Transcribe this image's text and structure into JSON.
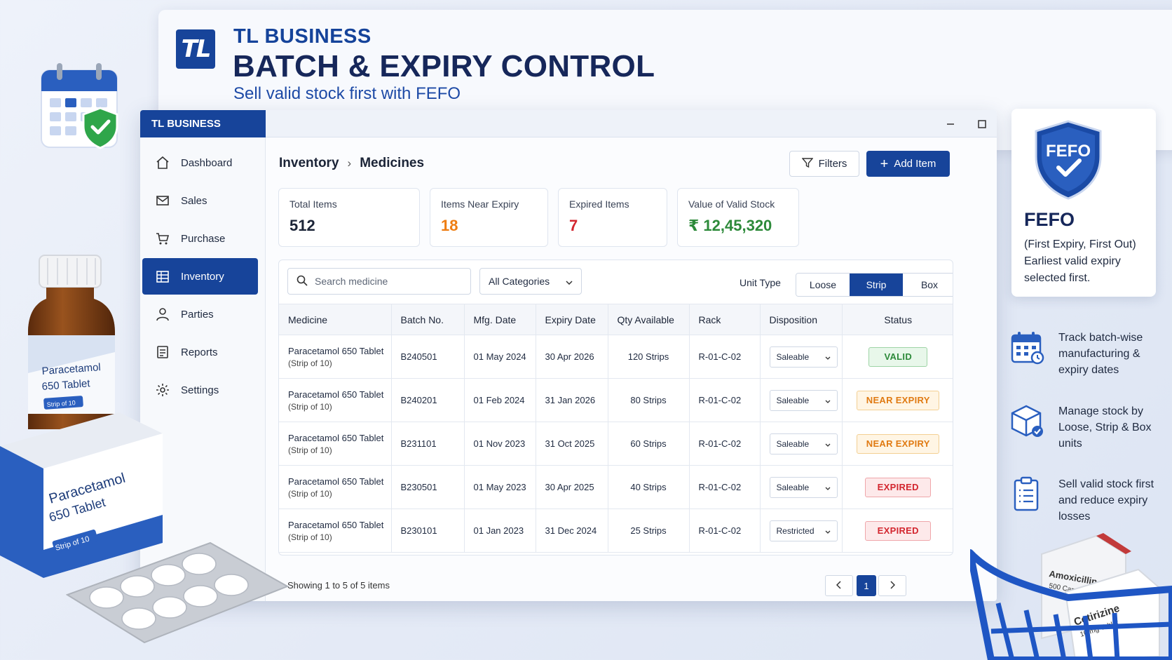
{
  "brand": {
    "logo": "TL",
    "name": "TL BUSINESS",
    "title": "BATCH & EXPIRY CONTROL",
    "tagline": "Sell valid stock first with FEFO"
  },
  "window": {
    "app_name": "TL BUSINESS",
    "controls": [
      "minimize-icon",
      "maximize-icon",
      "close-icon"
    ]
  },
  "sidebar": {
    "items": [
      {
        "label": "Dashboard",
        "icon": "home-icon"
      },
      {
        "label": "Sales",
        "icon": "sales-icon"
      },
      {
        "label": "Purchase",
        "icon": "cart-icon"
      },
      {
        "label": "Inventory",
        "icon": "inventory-icon",
        "active": true
      },
      {
        "label": "Parties",
        "icon": "user-icon"
      },
      {
        "label": "Reports",
        "icon": "report-icon"
      },
      {
        "label": "Settings",
        "icon": "gear-icon"
      }
    ]
  },
  "breadcrumb": {
    "root": "Inventory",
    "current": "Medicines"
  },
  "toolbar": {
    "filters_label": "Filters",
    "add_label": "Add Item"
  },
  "stats": [
    {
      "label": "Total Items",
      "value": "512",
      "color": "#1b2437"
    },
    {
      "label": "Items Near Expiry",
      "value": "18",
      "color": "#ee7d12"
    },
    {
      "label": "Expired Items",
      "value": "7",
      "color": "#d3262f"
    },
    {
      "label": "Value of Valid Stock",
      "value": "₹ 12,45,320",
      "color": "#2d8a3a"
    }
  ],
  "filters": {
    "search_placeholder": "Search medicine",
    "category": "All Categories",
    "unit_type_label": "Unit Type",
    "unit_types": [
      "Loose",
      "Strip",
      "Box"
    ],
    "unit_selected": "Strip"
  },
  "table": {
    "columns": [
      "Medicine",
      "Batch No.",
      "Mfg. Date",
      "Expiry Date",
      "Qty Available",
      "Rack",
      "Disposition",
      "Status"
    ],
    "rows": [
      {
        "medicine": "Paracetamol 650 Tablet",
        "pack": "(Strip of 10)",
        "batch": "B240501",
        "mfg": "01 May 2024",
        "expiry": "30 Apr 2026",
        "qty": "120 Strips",
        "rack": "R-01-C-02",
        "disposition": "Saleable",
        "status": "VALID",
        "status_kind": "valid"
      },
      {
        "medicine": "Paracetamol 650 Tablet",
        "pack": "(Strip of 10)",
        "batch": "B240201",
        "mfg": "01 Feb 2024",
        "expiry": "31 Jan 2026",
        "qty": "80 Strips",
        "rack": "R-01-C-02",
        "disposition": "Saleable",
        "status": "NEAR EXPIRY",
        "status_kind": "near"
      },
      {
        "medicine": "Paracetamol 650 Tablet",
        "pack": "(Strip of 10)",
        "batch": "B231101",
        "mfg": "01 Nov 2023",
        "expiry": "31 Oct 2025",
        "qty": "60 Strips",
        "rack": "R-01-C-02",
        "disposition": "Saleable",
        "status": "NEAR EXPIRY",
        "status_kind": "near"
      },
      {
        "medicine": "Paracetamol 650 Tablet",
        "pack": "(Strip of 10)",
        "batch": "B230501",
        "mfg": "01 May 2023",
        "expiry": "30 Apr 2025",
        "qty": "40 Strips",
        "rack": "R-01-C-02",
        "disposition": "Saleable",
        "status": "EXPIRED",
        "status_kind": "exp"
      },
      {
        "medicine": "Paracetamol 650 Tablet",
        "pack": "(Strip of 10)",
        "batch": "B230101",
        "mfg": "01 Jan 2023",
        "expiry": "31 Dec 2024",
        "qty": "25 Strips",
        "rack": "R-01-C-02",
        "disposition": "Restricted",
        "status": "EXPIRED",
        "status_kind": "exp"
      }
    ]
  },
  "pagination": {
    "summary": "Showing 1 to 5 of 5 items",
    "current_page": "1"
  },
  "fefo_panel": {
    "badge": "FEFO",
    "title": "FEFO",
    "line1": "(First Expiry, First Out)",
    "line2": "Earliest valid expiry",
    "line3": "selected first."
  },
  "features": [
    {
      "icon": "calendar-icon",
      "text": "Track batch-wise manufacturing & expiry dates"
    },
    {
      "icon": "box-icon",
      "text": "Manage stock by Loose, Strip & Box units"
    },
    {
      "icon": "clipboard-icon",
      "text": "Sell valid stock first and reduce expiry losses"
    }
  ],
  "product_labels": {
    "bottle_name": "Paracetamol",
    "bottle_strength": "650 Tablet",
    "bottle_pack": "Strip of 10",
    "box_name": "Paracetamol",
    "box_strength": "650 Tablet",
    "box_pack": "Strip of 10",
    "basket_box1_name": "Amoxicillin",
    "basket_box1_strength": "500 Capsule",
    "basket_box2_name": "Cetirizine",
    "basket_box2_strength": "10 mg Tablet"
  },
  "colors": {
    "primary": "#17449a",
    "valid": "#2d8a3a",
    "near_expiry": "#ee7d12",
    "expired": "#d3262f"
  }
}
